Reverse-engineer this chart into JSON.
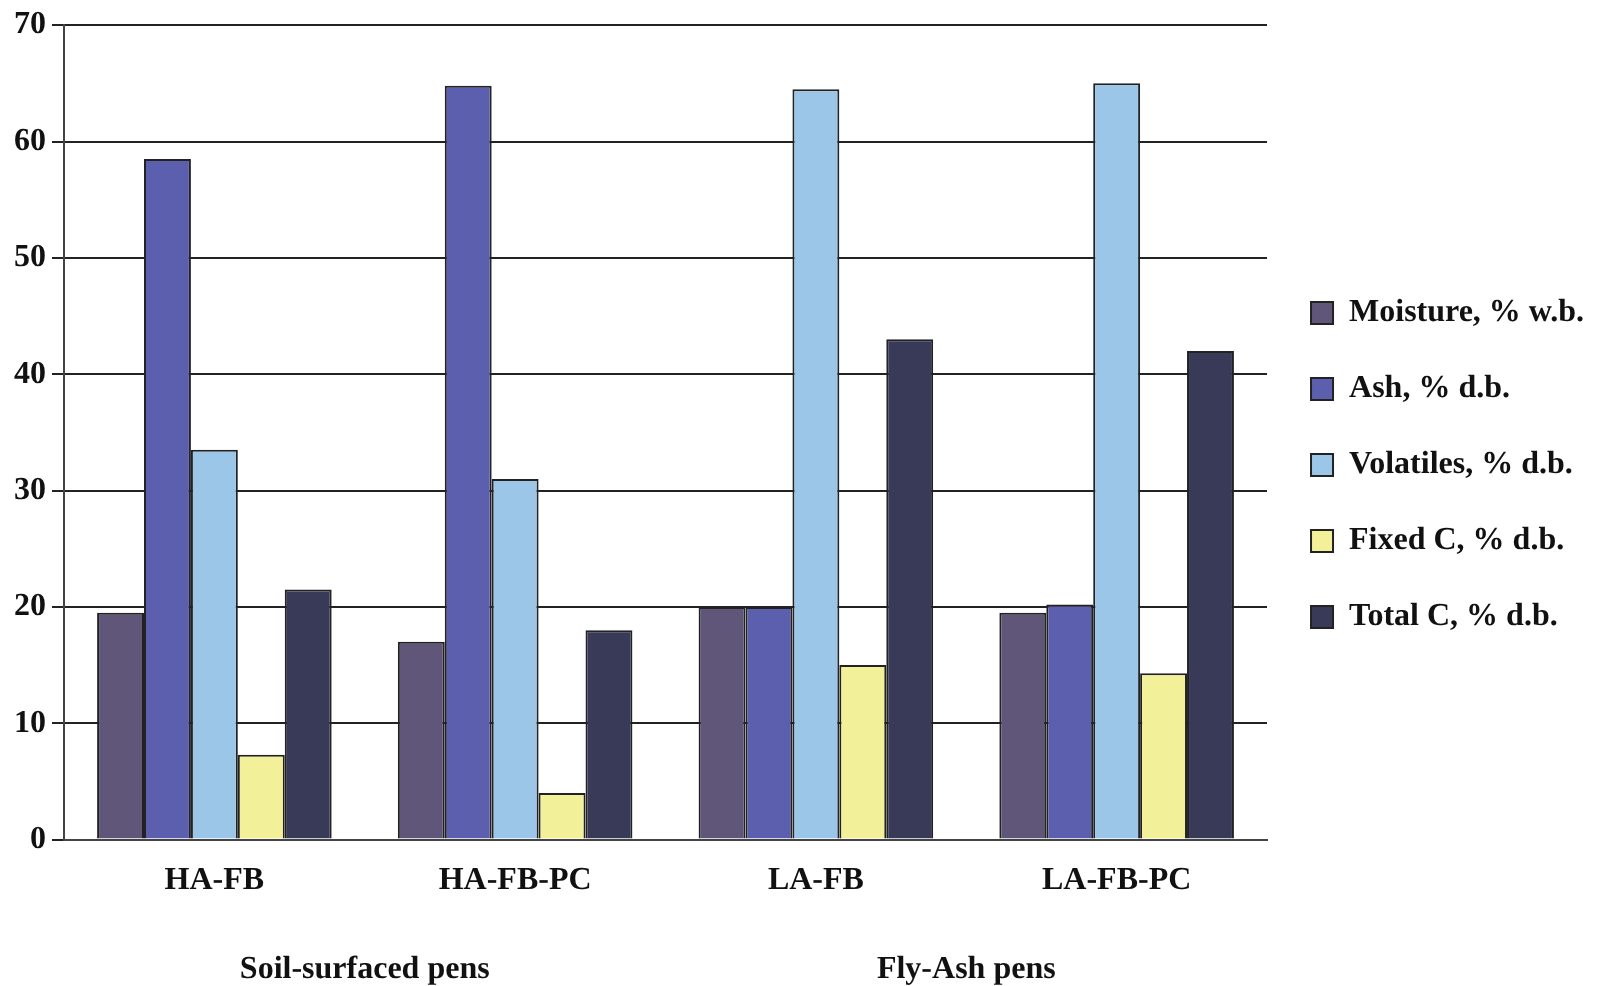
{
  "chart_data": {
    "type": "bar",
    "categories": [
      "HA-FB",
      "HA-FB-PC",
      "LA-FB",
      "LA-FB-PC"
    ],
    "series": [
      {
        "name": "Moisture, % w.b.",
        "color": "#5f5679",
        "values": [
          19.5,
          17,
          20,
          19.5
        ]
      },
      {
        "name": "Ash, % d.b.",
        "color": "#5b5fae",
        "values": [
          58.5,
          64.8,
          20,
          20.2
        ]
      },
      {
        "name": "Volatiles, % d.b.",
        "color": "#9cc6e8",
        "values": [
          33.5,
          31,
          64.5,
          65
        ]
      },
      {
        "name": "Fixed C, % d.b.",
        "color": "#f3f09a",
        "values": [
          7.3,
          4,
          15,
          14.3
        ]
      },
      {
        "name": "Total C, % d.b.",
        "color": "#393a58",
        "values": [
          21.5,
          18,
          43,
          42
        ]
      }
    ],
    "ylim": [
      0,
      70
    ],
    "yticks": [
      0,
      10,
      20,
      30,
      40,
      50,
      60,
      70
    ],
    "grid": "y",
    "legend": "right",
    "annotations": [
      "Soil-surfaced pens",
      "Fly-Ash pens"
    ]
  }
}
